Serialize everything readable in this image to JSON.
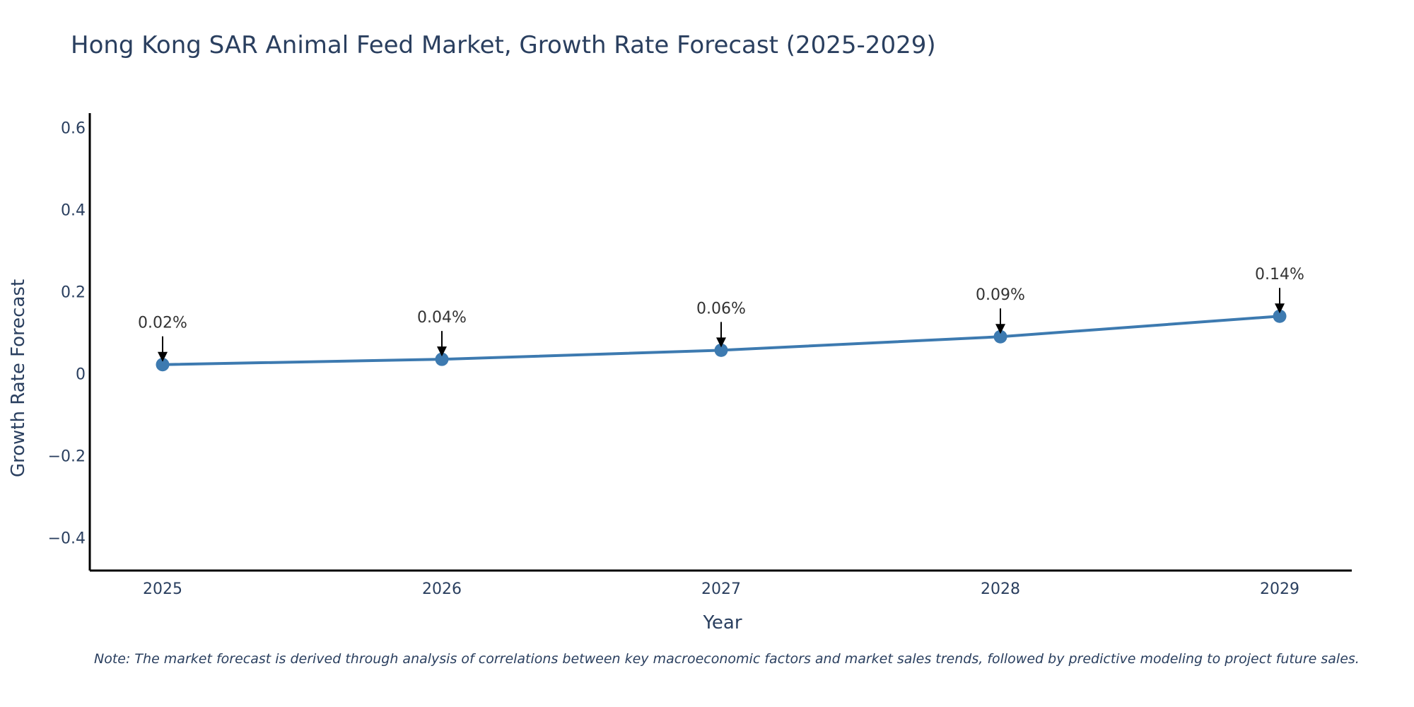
{
  "chart_data": {
    "type": "line",
    "title": "Hong Kong SAR Animal Feed Market, Growth Rate Forecast (2025-2029)",
    "xlabel": "Year",
    "ylabel": "Growth Rate Forecast",
    "categories": [
      "2025",
      "2026",
      "2027",
      "2028",
      "2029"
    ],
    "values": [
      0.022,
      0.035,
      0.057,
      0.09,
      0.14
    ],
    "data_labels": [
      "0.02%",
      "0.04%",
      "0.06%",
      "0.09%",
      "0.14%"
    ],
    "ylim": [
      -0.48,
      0.635
    ],
    "yticks": [
      -0.4,
      -0.2,
      0,
      0.2,
      0.4,
      0.6
    ],
    "ytick_labels": [
      "−0.4",
      "−0.2",
      "0",
      "0.2",
      "0.4",
      "0.6"
    ],
    "grid": false,
    "line_color": "#3d7ab0",
    "marker_color": "#3d7ab0",
    "annotation_arrow_color": "#000000"
  },
  "note": "Note: The market forecast is derived through analysis of correlations between key macroeconomic factors and market sales trends, followed by predictive modeling to project future sales."
}
